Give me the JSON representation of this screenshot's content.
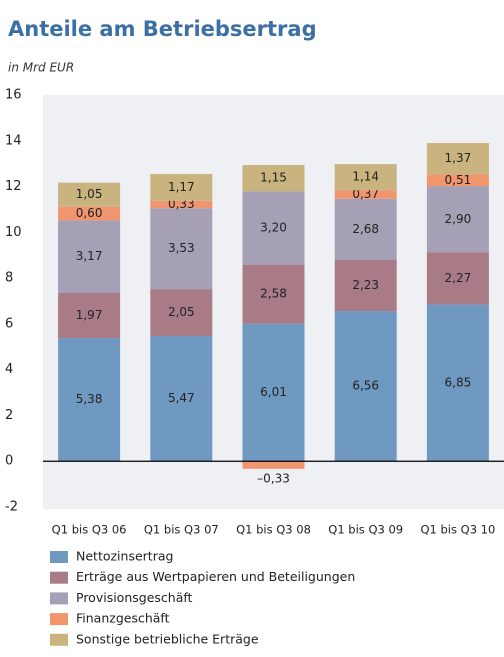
{
  "chart_data": {
    "type": "stacked_bar",
    "title": "Anteile am Betriebsertrag",
    "subtitle": "in Mrd EUR",
    "categories": [
      "Q1 bis Q3 06",
      "Q1 bis Q3 07",
      "Q1 bis Q3 08",
      "Q1 bis Q3 09",
      "Q1 bis Q3 10"
    ],
    "series": [
      {
        "name": "Nettozinsertrag",
        "color": "#7099c2",
        "values": [
          5.38,
          5.47,
          6.01,
          6.56,
          6.85
        ],
        "value_labels": [
          "5,38",
          "5,47",
          "6,01",
          "6,56",
          "6,85"
        ]
      },
      {
        "name": "Erträge aus Wertpapieren und Beteiligungen",
        "color": "#a97b87",
        "values": [
          1.97,
          2.05,
          2.58,
          2.23,
          2.27
        ],
        "value_labels": [
          "1,97",
          "2,05",
          "2,58",
          "2,23",
          "2,27"
        ]
      },
      {
        "name": "Provisionsgeschäft",
        "color": "#a6a0b6",
        "values": [
          3.17,
          3.53,
          3.2,
          2.68,
          2.9
        ],
        "value_labels": [
          "3,17",
          "3,53",
          "3,20",
          "2,68",
          "2,90"
        ]
      },
      {
        "name": "Finanzgeschäft",
        "color": "#f1956e",
        "values": [
          0.6,
          0.33,
          -0.33,
          0.37,
          0.51
        ],
        "value_labels": [
          "0,60",
          "0,33",
          "–0,33",
          "0,37",
          "0,51"
        ]
      },
      {
        "name": "Sonstige betriebliche Erträge",
        "color": "#c9b37f",
        "values": [
          1.05,
          1.17,
          1.15,
          1.14,
          1.37
        ],
        "value_labels": [
          "1,05",
          "1,17",
          "1,15",
          "1,14",
          "1,37"
        ]
      }
    ],
    "ylim": [
      -2,
      16
    ],
    "yticks": [
      -2,
      0,
      2,
      4,
      6,
      8,
      10,
      12,
      14,
      16
    ],
    "grid": false
  }
}
